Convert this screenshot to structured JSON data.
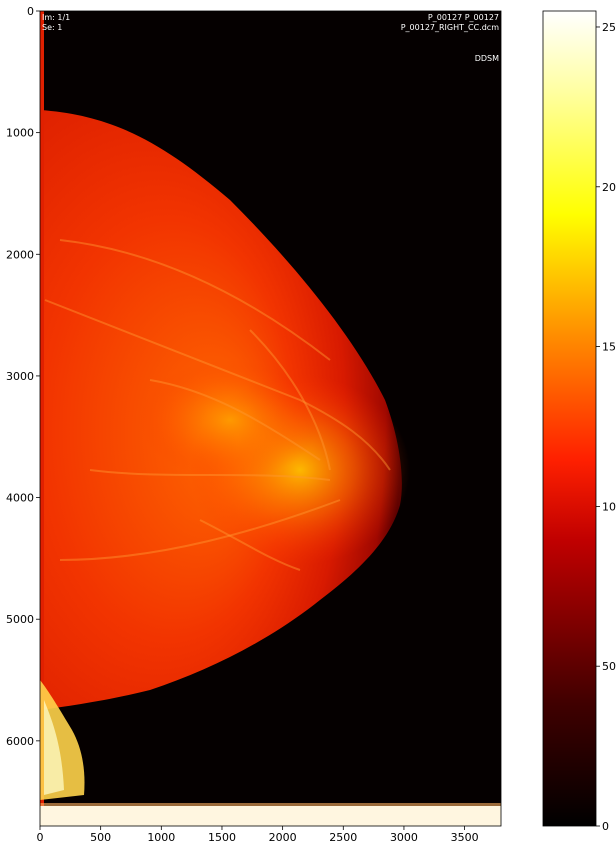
{
  "image": {
    "x_ticks": [
      "0",
      "500",
      "1000",
      "1500",
      "2000",
      "2500",
      "3000",
      "3500"
    ],
    "y_ticks": [
      "0",
      "1000",
      "2000",
      "3000",
      "4000",
      "5000",
      "6000"
    ],
    "x_range": [
      0,
      3800
    ],
    "y_range": [
      0,
      6700
    ],
    "overlay": {
      "top_left_1": "Im: 1/1",
      "top_left_2": "Se: 1",
      "top_right_1": "P_00127 P_00127",
      "top_right_2": "P_00127_RIGHT_CC.dcm",
      "top_right_3": "DDSM"
    },
    "colormap": "hot"
  },
  "colorbar": {
    "ticks": [
      "0",
      "50",
      "100",
      "150",
      "200",
      "250"
    ],
    "range": [
      0,
      255
    ],
    "colors": [
      "#000000",
      "#5a0000",
      "#c80000",
      "#ff5000",
      "#ff9600",
      "#ffd200",
      "#ffff32",
      "#ffffc8",
      "#ffffff"
    ]
  }
}
